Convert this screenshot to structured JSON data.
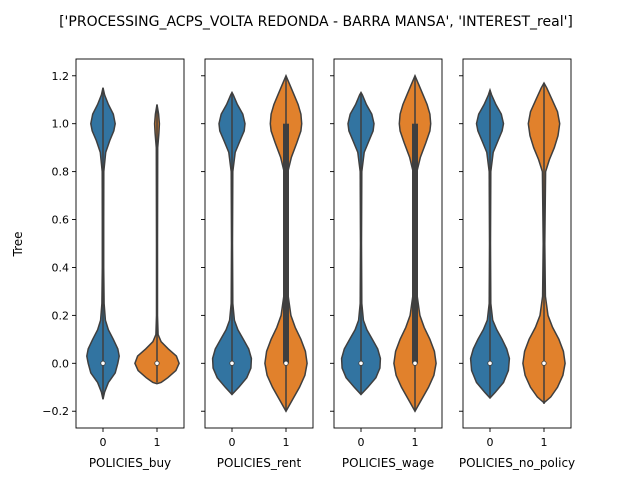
{
  "title": "['PROCESSING_ACPS_VOLTA REDONDA - BARRA MANSA', 'INTEREST_real']",
  "ylabel": "Tree",
  "colors": {
    "group0": "#3274a1",
    "group1": "#e1812c",
    "edge": "#3f3f3f",
    "median": "#ffffff",
    "axis": "#000000"
  },
  "chart_data": {
    "type": "violin",
    "title": "['PROCESSING_ACPS_VOLTA REDONDA - BARRA MANSA', 'INTEREST_real']",
    "ylabel": "Tree",
    "ylim": [
      -0.27,
      1.27
    ],
    "yticks": [
      -0.2,
      0.0,
      0.2,
      0.4,
      0.6,
      0.8,
      1.0,
      1.2
    ],
    "ytick_labels": [
      "−0.2",
      "0.0",
      "0.2",
      "0.4",
      "0.6",
      "0.8",
      "1.0",
      "1.2"
    ],
    "grid": false,
    "legend": "none",
    "categories": [
      "0",
      "1"
    ],
    "panels": [
      {
        "xlabel": "POLICIES_buy",
        "violins": [
          {
            "category": "0",
            "median": 0.0,
            "q1": 0.0,
            "q3": 0.0,
            "range": [
              -0.15,
              1.15
            ],
            "density": [
              [
                -0.15,
                0
              ],
              [
                -0.12,
                0.06
              ],
              [
                -0.08,
                0.2
              ],
              [
                -0.04,
                0.45
              ],
              [
                0.0,
                0.55
              ],
              [
                0.03,
                0.6
              ],
              [
                0.06,
                0.55
              ],
              [
                0.1,
                0.38
              ],
              [
                0.14,
                0.2
              ],
              [
                0.18,
                0.09
              ],
              [
                0.25,
                0.04
              ],
              [
                0.4,
                0.025
              ],
              [
                0.6,
                0.025
              ],
              [
                0.8,
                0.03
              ],
              [
                0.88,
                0.1
              ],
              [
                0.93,
                0.25
              ],
              [
                0.97,
                0.4
              ],
              [
                1.0,
                0.45
              ],
              [
                1.04,
                0.38
              ],
              [
                1.08,
                0.2
              ],
              [
                1.12,
                0.06
              ],
              [
                1.15,
                0
              ]
            ]
          },
          {
            "category": "1",
            "median": 0.0,
            "q1": 0.0,
            "q3": 0.0,
            "range": [
              -0.08,
              1.08
            ],
            "density": [
              [
                -0.085,
                0
              ],
              [
                -0.08,
                0.15
              ],
              [
                -0.06,
                0.4
              ],
              [
                -0.03,
                0.7
              ],
              [
                0.0,
                0.82
              ],
              [
                0.03,
                0.72
              ],
              [
                0.06,
                0.42
              ],
              [
                0.09,
                0.15
              ],
              [
                0.12,
                0.04
              ],
              [
                0.2,
                0.02
              ],
              [
                0.5,
                0.02
              ],
              [
                0.9,
                0.025
              ],
              [
                0.96,
                0.07
              ],
              [
                1.0,
                0.09
              ],
              [
                1.04,
                0.06
              ],
              [
                1.08,
                0
              ]
            ]
          }
        ]
      },
      {
        "xlabel": "POLICIES_rent",
        "violins": [
          {
            "category": "0",
            "median": 0.0,
            "q1": 0.0,
            "q3": 0.0,
            "range": [
              -0.13,
              1.13
            ],
            "density": [
              [
                -0.13,
                0
              ],
              [
                -0.1,
                0.25
              ],
              [
                -0.06,
                0.55
              ],
              [
                -0.02,
                0.7
              ],
              [
                0.02,
                0.72
              ],
              [
                0.06,
                0.62
              ],
              [
                0.1,
                0.42
              ],
              [
                0.14,
                0.22
              ],
              [
                0.18,
                0.09
              ],
              [
                0.25,
                0.03
              ],
              [
                0.5,
                0.02
              ],
              [
                0.8,
                0.03
              ],
              [
                0.88,
                0.12
              ],
              [
                0.93,
                0.3
              ],
              [
                0.97,
                0.45
              ],
              [
                1.0,
                0.48
              ],
              [
                1.04,
                0.4
              ],
              [
                1.08,
                0.2
              ],
              [
                1.12,
                0.05
              ],
              [
                1.13,
                0
              ]
            ]
          },
          {
            "category": "1",
            "median": 0.0,
            "q1": 0.0,
            "q3": 1.0,
            "range": [
              -0.2,
              1.2
            ],
            "density": [
              [
                -0.2,
                0
              ],
              [
                -0.16,
                0.2
              ],
              [
                -0.1,
                0.5
              ],
              [
                -0.05,
                0.7
              ],
              [
                0.0,
                0.78
              ],
              [
                0.05,
                0.72
              ],
              [
                0.1,
                0.55
              ],
              [
                0.15,
                0.34
              ],
              [
                0.2,
                0.18
              ],
              [
                0.28,
                0.08
              ],
              [
                0.5,
                0.06
              ],
              [
                0.8,
                0.07
              ],
              [
                0.86,
                0.2
              ],
              [
                0.92,
                0.4
              ],
              [
                0.97,
                0.55
              ],
              [
                1.0,
                0.58
              ],
              [
                1.04,
                0.55
              ],
              [
                1.08,
                0.45
              ],
              [
                1.12,
                0.3
              ],
              [
                1.16,
                0.15
              ],
              [
                1.2,
                0
              ]
            ]
          }
        ]
      },
      {
        "xlabel": "POLICIES_wage",
        "violins": [
          {
            "category": "0",
            "median": 0.0,
            "q1": 0.0,
            "q3": 0.0,
            "range": [
              -0.13,
              1.13
            ],
            "density": [
              [
                -0.13,
                0
              ],
              [
                -0.1,
                0.25
              ],
              [
                -0.06,
                0.55
              ],
              [
                -0.02,
                0.7
              ],
              [
                0.02,
                0.72
              ],
              [
                0.06,
                0.62
              ],
              [
                0.1,
                0.42
              ],
              [
                0.14,
                0.22
              ],
              [
                0.18,
                0.09
              ],
              [
                0.25,
                0.03
              ],
              [
                0.5,
                0.02
              ],
              [
                0.8,
                0.03
              ],
              [
                0.88,
                0.12
              ],
              [
                0.93,
                0.3
              ],
              [
                0.97,
                0.45
              ],
              [
                1.0,
                0.48
              ],
              [
                1.04,
                0.4
              ],
              [
                1.08,
                0.2
              ],
              [
                1.12,
                0.05
              ],
              [
                1.13,
                0
              ]
            ]
          },
          {
            "category": "1",
            "median": 0.0,
            "q1": 0.0,
            "q3": 1.0,
            "range": [
              -0.2,
              1.2
            ],
            "density": [
              [
                -0.2,
                0
              ],
              [
                -0.16,
                0.2
              ],
              [
                -0.1,
                0.5
              ],
              [
                -0.05,
                0.7
              ],
              [
                0.0,
                0.78
              ],
              [
                0.05,
                0.72
              ],
              [
                0.1,
                0.55
              ],
              [
                0.15,
                0.34
              ],
              [
                0.2,
                0.18
              ],
              [
                0.28,
                0.08
              ],
              [
                0.5,
                0.06
              ],
              [
                0.8,
                0.07
              ],
              [
                0.86,
                0.2
              ],
              [
                0.92,
                0.4
              ],
              [
                0.97,
                0.55
              ],
              [
                1.0,
                0.58
              ],
              [
                1.04,
                0.55
              ],
              [
                1.08,
                0.45
              ],
              [
                1.12,
                0.3
              ],
              [
                1.16,
                0.15
              ],
              [
                1.2,
                0
              ]
            ]
          }
        ]
      },
      {
        "xlabel": "POLICIES_no_policy",
        "violins": [
          {
            "category": "0",
            "median": 0.0,
            "q1": 0.0,
            "q3": 0.0,
            "range": [
              -0.14,
              1.14
            ],
            "density": [
              [
                -0.145,
                0
              ],
              [
                -0.12,
                0.2
              ],
              [
                -0.08,
                0.5
              ],
              [
                -0.03,
                0.68
              ],
              [
                0.02,
                0.72
              ],
              [
                0.06,
                0.62
              ],
              [
                0.1,
                0.45
              ],
              [
                0.14,
                0.25
              ],
              [
                0.18,
                0.1
              ],
              [
                0.25,
                0.03
              ],
              [
                0.5,
                0.02
              ],
              [
                0.8,
                0.03
              ],
              [
                0.88,
                0.12
              ],
              [
                0.93,
                0.3
              ],
              [
                0.97,
                0.45
              ],
              [
                1.0,
                0.5
              ],
              [
                1.04,
                0.42
              ],
              [
                1.08,
                0.22
              ],
              [
                1.12,
                0.06
              ],
              [
                1.14,
                0
              ]
            ]
          },
          {
            "category": "1",
            "median": 0.0,
            "q1": 0.0,
            "q3": 0.0,
            "range": [
              -0.17,
              1.17
            ],
            "density": [
              [
                -0.165,
                0
              ],
              [
                -0.14,
                0.25
              ],
              [
                -0.1,
                0.5
              ],
              [
                -0.05,
                0.7
              ],
              [
                0.0,
                0.78
              ],
              [
                0.05,
                0.72
              ],
              [
                0.1,
                0.55
              ],
              [
                0.15,
                0.32
              ],
              [
                0.2,
                0.15
              ],
              [
                0.28,
                0.05
              ],
              [
                0.5,
                0.03
              ],
              [
                0.8,
                0.06
              ],
              [
                0.85,
                0.2
              ],
              [
                0.9,
                0.38
              ],
              [
                0.95,
                0.52
              ],
              [
                1.0,
                0.58
              ],
              [
                1.05,
                0.5
              ],
              [
                1.1,
                0.3
              ],
              [
                1.15,
                0.1
              ],
              [
                1.17,
                0
              ]
            ]
          }
        ]
      }
    ]
  }
}
